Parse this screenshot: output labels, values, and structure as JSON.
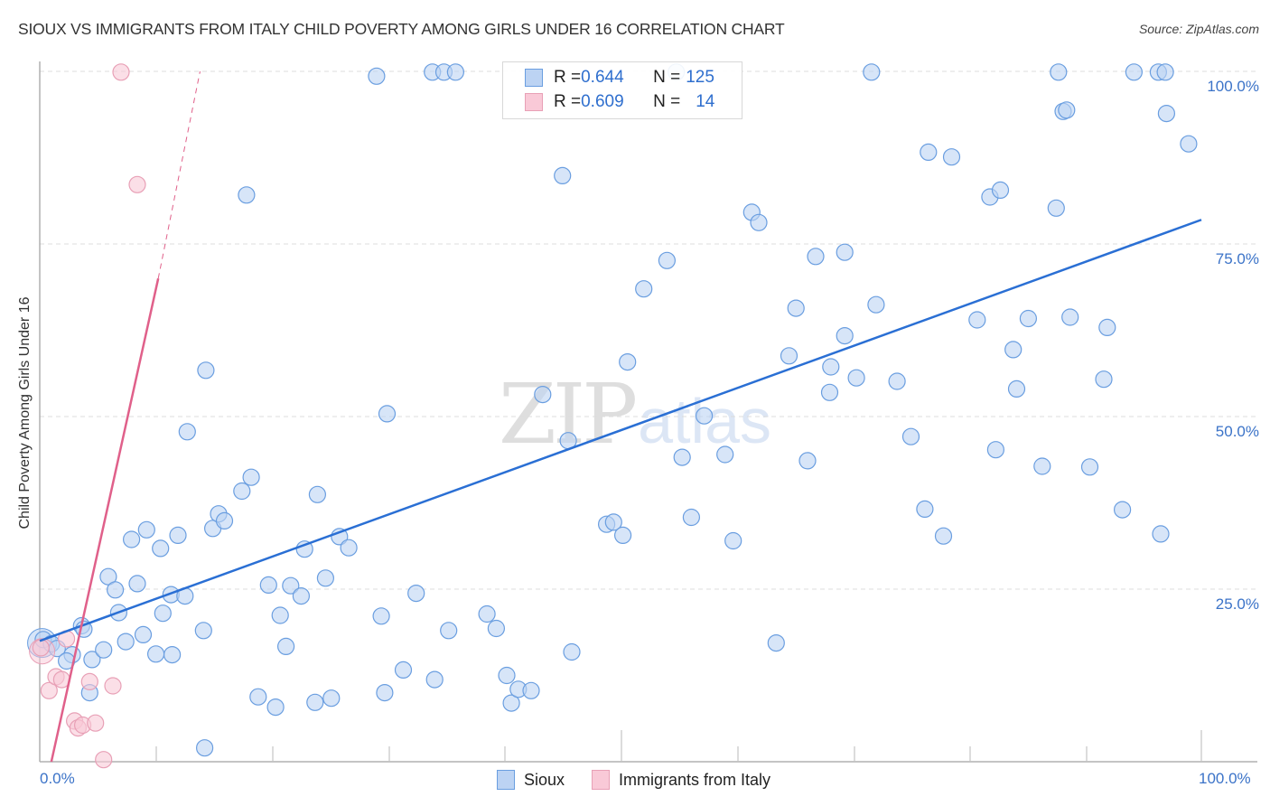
{
  "title": "SIOUX VS IMMIGRANTS FROM ITALY CHILD POVERTY AMONG GIRLS UNDER 16 CORRELATION CHART",
  "source": "Source: ZipAtlas.com",
  "y_axis_label": "Child Poverty Among Girls Under 16",
  "y_ticks": [
    "100.0%",
    "75.0%",
    "50.0%",
    "25.0%"
  ],
  "x_ticks": {
    "min": "0.0%",
    "max": "100.0%"
  },
  "watermark": {
    "zip": "ZIP",
    "atlas": "atlas"
  },
  "legend": {
    "sioux": {
      "r_label": "R = ",
      "r_value": "0.644",
      "n_label": "N = ",
      "n_value": "125"
    },
    "italy": {
      "r_label": "R = ",
      "r_value": "0.609",
      "n_label": "N = ",
      "n_value": "14"
    }
  },
  "bottom_legend": {
    "sioux": "Sioux",
    "italy": "Immigrants from Italy"
  },
  "colors": {
    "sioux_fill": "#bcd3f3",
    "sioux_stroke": "#6a9ee0",
    "sioux_line": "#2a6fd4",
    "italy_fill": "#f9c9d7",
    "italy_stroke": "#e8a0b6",
    "italy_line": "#e0608a",
    "tick_text": "#3b73c8"
  },
  "chart_data": {
    "type": "scatter",
    "title": "SIOUX VS IMMIGRANTS FROM ITALY CHILD POVERTY AMONG GIRLS UNDER 16 CORRELATION CHART",
    "xlabel": "",
    "ylabel": "Child Poverty Among Girls Under 16",
    "xlim": [
      0,
      100
    ],
    "ylim": [
      0,
      100
    ],
    "x_tick_labels": [
      "0.0%",
      "100.0%"
    ],
    "y_tick_labels": [
      "25.0%",
      "50.0%",
      "75.0%",
      "100.0%"
    ],
    "grid": "horizontal dashed",
    "legend_position": "top-center inset and bottom",
    "series": [
      {
        "name": "Sioux",
        "R": 0.644,
        "N": 125,
        "trend": {
          "x0": 0,
          "y0": 17.5,
          "x1": 100,
          "y1": 78.5
        },
        "points": [
          [
            0.3,
            17.7
          ],
          [
            1.0,
            17.1
          ],
          [
            1.5,
            16.4
          ],
          [
            2.8,
            15.5
          ],
          [
            2.3,
            14.6
          ],
          [
            3.6,
            19.7
          ],
          [
            3.8,
            19.2
          ],
          [
            4.3,
            10.0
          ],
          [
            4.5,
            14.8
          ],
          [
            5.5,
            16.2
          ],
          [
            5.9,
            26.8
          ],
          [
            6.5,
            24.9
          ],
          [
            6.8,
            21.6
          ],
          [
            7.4,
            17.4
          ],
          [
            7.9,
            32.2
          ],
          [
            8.4,
            25.8
          ],
          [
            8.9,
            18.4
          ],
          [
            9.2,
            33.6
          ],
          [
            10.0,
            15.6
          ],
          [
            10.4,
            30.9
          ],
          [
            10.6,
            21.5
          ],
          [
            11.3,
            24.2
          ],
          [
            11.4,
            15.5
          ],
          [
            11.9,
            32.8
          ],
          [
            12.7,
            47.8
          ],
          [
            14.1,
            19.0
          ],
          [
            14.3,
            56.7
          ],
          [
            14.9,
            33.8
          ],
          [
            15.4,
            35.9
          ],
          [
            15.9,
            34.9
          ],
          [
            17.4,
            39.2
          ],
          [
            17.8,
            82.1
          ],
          [
            18.2,
            41.2
          ],
          [
            18.8,
            9.4
          ],
          [
            19.7,
            25.6
          ],
          [
            20.7,
            21.2
          ],
          [
            20.3,
            7.9
          ],
          [
            21.2,
            16.7
          ],
          [
            21.6,
            25.5
          ],
          [
            22.5,
            24.0
          ],
          [
            22.8,
            30.8
          ],
          [
            23.7,
            8.6
          ],
          [
            23.9,
            38.7
          ],
          [
            24.6,
            26.6
          ],
          [
            25.1,
            9.2
          ],
          [
            25.8,
            32.6
          ],
          [
            26.6,
            31.0
          ],
          [
            29.0,
            99.3
          ],
          [
            29.4,
            21.1
          ],
          [
            29.7,
            10.0
          ],
          [
            29.9,
            50.4
          ],
          [
            31.3,
            13.3
          ],
          [
            32.4,
            24.4
          ],
          [
            33.8,
            99.9
          ],
          [
            34.8,
            99.9
          ],
          [
            34.0,
            11.9
          ],
          [
            35.2,
            19.0
          ],
          [
            35.8,
            99.9
          ],
          [
            38.5,
            21.4
          ],
          [
            39.3,
            19.3
          ],
          [
            40.2,
            12.5
          ],
          [
            40.6,
            8.5
          ],
          [
            41.2,
            10.5
          ],
          [
            43.3,
            53.2
          ],
          [
            45.0,
            84.9
          ],
          [
            45.5,
            46.5
          ],
          [
            45.8,
            15.9
          ],
          [
            48.8,
            34.4
          ],
          [
            49.4,
            34.7
          ],
          [
            50.2,
            32.8
          ],
          [
            50.6,
            57.9
          ],
          [
            52.0,
            68.5
          ],
          [
            54.0,
            72.6
          ],
          [
            54.8,
            99.9
          ],
          [
            55.3,
            44.1
          ],
          [
            56.1,
            35.4
          ],
          [
            57.2,
            50.1
          ],
          [
            59.0,
            44.5
          ],
          [
            59.7,
            32.0
          ],
          [
            61.3,
            79.6
          ],
          [
            61.9,
            78.1
          ],
          [
            63.4,
            17.2
          ],
          [
            64.5,
            58.8
          ],
          [
            65.1,
            65.7
          ],
          [
            66.1,
            43.6
          ],
          [
            66.8,
            73.2
          ],
          [
            68.0,
            53.5
          ],
          [
            68.1,
            57.2
          ],
          [
            69.3,
            61.7
          ],
          [
            69.3,
            73.8
          ],
          [
            70.3,
            55.6
          ],
          [
            71.6,
            99.9
          ],
          [
            72.0,
            66.2
          ],
          [
            73.8,
            55.1
          ],
          [
            75.0,
            47.1
          ],
          [
            76.2,
            36.6
          ],
          [
            76.5,
            88.3
          ],
          [
            77.8,
            32.7
          ],
          [
            78.5,
            87.6
          ],
          [
            80.7,
            64.0
          ],
          [
            81.8,
            81.8
          ],
          [
            82.3,
            45.2
          ],
          [
            82.7,
            82.8
          ],
          [
            83.8,
            59.7
          ],
          [
            84.1,
            54.0
          ],
          [
            85.1,
            64.2
          ],
          [
            86.3,
            42.8
          ],
          [
            87.5,
            80.2
          ],
          [
            87.7,
            99.9
          ],
          [
            88.1,
            94.2
          ],
          [
            88.4,
            94.4
          ],
          [
            88.7,
            64.4
          ],
          [
            90.4,
            42.7
          ],
          [
            91.6,
            55.4
          ],
          [
            91.9,
            62.9
          ],
          [
            93.2,
            36.5
          ],
          [
            94.2,
            99.9
          ],
          [
            96.3,
            99.9
          ],
          [
            96.5,
            33.0
          ],
          [
            96.9,
            99.9
          ],
          [
            97.0,
            93.9
          ],
          [
            98.9,
            89.5
          ],
          [
            14.2,
            2.0
          ],
          [
            42.3,
            10.3
          ],
          [
            12.5,
            24.0
          ]
        ]
      },
      {
        "name": "Immigrants from Italy",
        "R": 0.609,
        "N": 14,
        "trend": {
          "x0": 1.0,
          "y0": 0.0,
          "x1": 10.2,
          "y1": 70.0,
          "dashed_to": {
            "x": 13.8,
            "y": 100.0
          }
        },
        "points": [
          [
            0.1,
            16.5
          ],
          [
            0.8,
            10.3
          ],
          [
            1.4,
            12.3
          ],
          [
            1.9,
            11.9
          ],
          [
            2.3,
            17.8
          ],
          [
            3.0,
            5.9
          ],
          [
            3.3,
            4.9
          ],
          [
            3.7,
            5.3
          ],
          [
            4.3,
            11.6
          ],
          [
            4.8,
            5.6
          ],
          [
            5.5,
            0.3
          ],
          [
            6.3,
            11.0
          ],
          [
            7.0,
            99.9
          ],
          [
            8.4,
            83.6
          ]
        ]
      }
    ]
  }
}
